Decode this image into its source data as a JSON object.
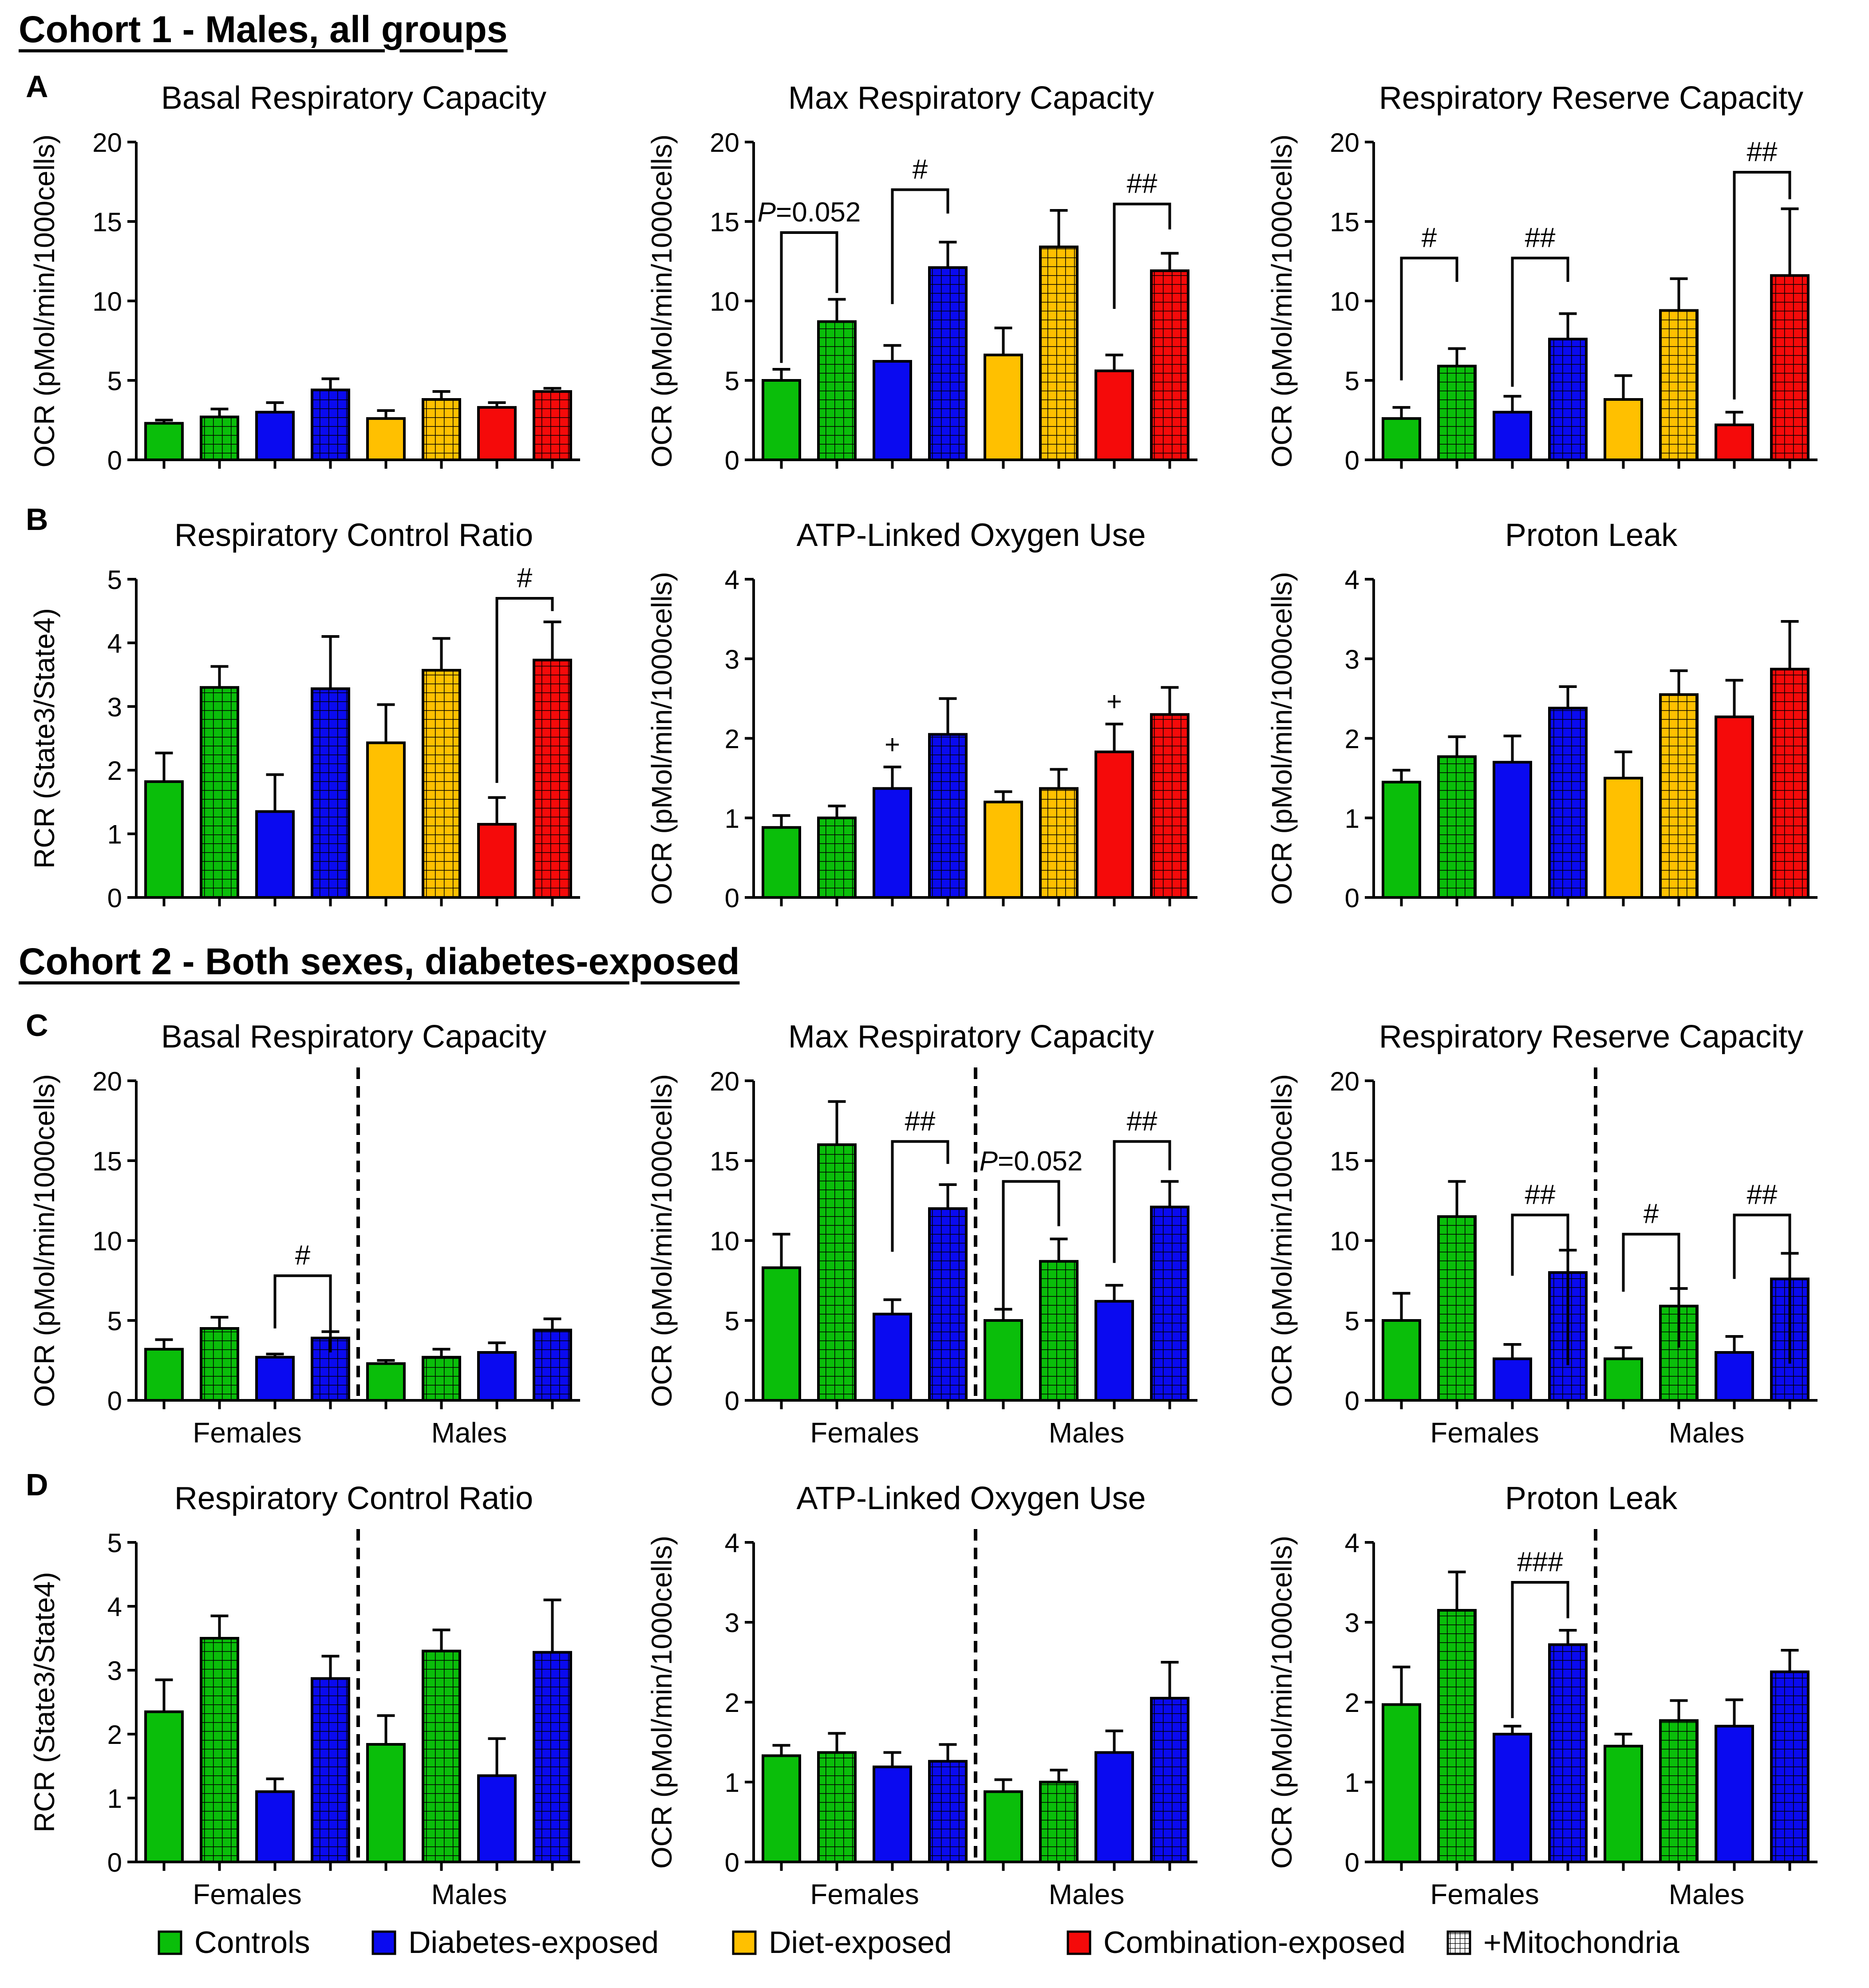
{
  "colors": {
    "controls": "#0ABE0A",
    "diabetes": "#0A0AF0",
    "diet": "#FFC000",
    "combination": "#F50A0A",
    "axis": "#000000"
  },
  "cohorts": [
    {
      "id": "cohort-1",
      "title": "Cohort 1 - Males, all groups"
    },
    {
      "id": "cohort-2",
      "title": "Cohort 2 - Both sexes, diabetes-exposed"
    }
  ],
  "panel_letters": [
    "A",
    "B",
    "C",
    "D"
  ],
  "legend": {
    "items": [
      {
        "label": "Controls",
        "color": "#0ABE0A",
        "icon": "solid-swatch"
      },
      {
        "label": "Diabetes-exposed",
        "color": "#0A0AF0",
        "icon": "solid-swatch"
      },
      {
        "label": "Diet-exposed",
        "color": "#FFC000",
        "icon": "solid-swatch"
      },
      {
        "label": "Combination-exposed",
        "color": "#F50A0A",
        "icon": "solid-swatch"
      },
      {
        "label": "+Mitochondria",
        "color": "#ffffff",
        "icon": "grid-swatch"
      }
    ]
  },
  "chart_data": [
    {
      "id": "a1",
      "type": "bar",
      "title": "Basal Respiratory Capacity",
      "ylabel": "OCR (pMol/min/1000cells)",
      "ylim": [
        0,
        20
      ],
      "yticks": [
        0,
        5,
        10,
        15,
        20
      ],
      "bars": [
        {
          "value": 2.3,
          "err": 0.2,
          "group": "controls",
          "mito": false
        },
        {
          "value": 2.7,
          "err": 0.5,
          "group": "controls",
          "mito": true
        },
        {
          "value": 3.0,
          "err": 0.6,
          "group": "diabetes",
          "mito": false
        },
        {
          "value": 4.4,
          "err": 0.7,
          "group": "diabetes",
          "mito": true
        },
        {
          "value": 2.6,
          "err": 0.5,
          "group": "diet",
          "mito": false
        },
        {
          "value": 3.8,
          "err": 0.5,
          "group": "diet",
          "mito": true
        },
        {
          "value": 3.3,
          "err": 0.3,
          "group": "combination",
          "mito": false
        },
        {
          "value": 4.3,
          "err": 0.2,
          "group": "combination",
          "mito": true
        }
      ],
      "brackets": []
    },
    {
      "id": "a2",
      "type": "bar",
      "title": "Max Respiratory Capacity",
      "ylabel": "OCR (pMol/min/1000cells)",
      "ylim": [
        0,
        20
      ],
      "yticks": [
        0,
        5,
        10,
        15,
        20
      ],
      "bars": [
        {
          "value": 5.0,
          "err": 0.7,
          "group": "controls",
          "mito": false
        },
        {
          "value": 8.7,
          "err": 1.4,
          "group": "controls",
          "mito": true
        },
        {
          "value": 6.2,
          "err": 1.0,
          "group": "diabetes",
          "mito": false
        },
        {
          "value": 12.1,
          "err": 1.6,
          "group": "diabetes",
          "mito": true
        },
        {
          "value": 6.6,
          "err": 1.7,
          "group": "diet",
          "mito": false
        },
        {
          "value": 13.4,
          "err": 2.3,
          "group": "diet",
          "mito": true
        },
        {
          "value": 5.6,
          "err": 1.0,
          "group": "combination",
          "mito": false
        },
        {
          "value": 11.9,
          "err": 1.1,
          "group": "combination",
          "mito": true
        }
      ],
      "brackets": [
        {
          "i": 0,
          "j": 1,
          "y": 14.3,
          "left": 6.1,
          "right": 10.5,
          "text": "=0.052",
          "italic_prefix": "P"
        },
        {
          "i": 2,
          "j": 3,
          "y": 17.0,
          "left": 9.8,
          "right": 15.5,
          "text": "#"
        },
        {
          "i": 6,
          "j": 7,
          "y": 16.1,
          "left": 9.5,
          "right": 14.5,
          "text": "##"
        }
      ]
    },
    {
      "id": "a3",
      "type": "bar",
      "title": "Respiratory Reserve Capacity",
      "ylabel": "OCR (pMol/min/1000cells)",
      "ylim": [
        0,
        20
      ],
      "yticks": [
        0,
        5,
        10,
        15,
        20
      ],
      "bars": [
        {
          "value": 2.6,
          "err": 0.7,
          "group": "controls",
          "mito": false
        },
        {
          "value": 5.9,
          "err": 1.1,
          "group": "controls",
          "mito": true
        },
        {
          "value": 3.0,
          "err": 1.0,
          "group": "diabetes",
          "mito": false
        },
        {
          "value": 7.6,
          "err": 1.6,
          "group": "diabetes",
          "mito": true
        },
        {
          "value": 3.8,
          "err": 1.5,
          "group": "diet",
          "mito": false
        },
        {
          "value": 9.4,
          "err": 2.0,
          "group": "diet",
          "mito": true
        },
        {
          "value": 2.2,
          "err": 0.8,
          "group": "combination",
          "mito": false
        },
        {
          "value": 11.6,
          "err": 4.2,
          "group": "combination",
          "mito": true
        }
      ],
      "brackets": [
        {
          "i": 0,
          "j": 1,
          "y": 12.7,
          "left": 5.0,
          "right": 11.2,
          "text": "#"
        },
        {
          "i": 2,
          "j": 3,
          "y": 12.7,
          "left": 4.6,
          "right": 11.2,
          "text": "##"
        },
        {
          "i": 6,
          "j": 7,
          "y": 18.1,
          "left": 3.8,
          "right": 16.4,
          "text": "##"
        }
      ]
    },
    {
      "id": "b1",
      "type": "bar",
      "title": "Respiratory Control Ratio",
      "ylabel": "RCR (State3/State4)",
      "ylim": [
        0,
        5
      ],
      "yticks": [
        0,
        1,
        2,
        3,
        4,
        5
      ],
      "bars": [
        {
          "value": 1.82,
          "err": 0.45,
          "group": "controls",
          "mito": false
        },
        {
          "value": 3.3,
          "err": 0.33,
          "group": "controls",
          "mito": true
        },
        {
          "value": 1.35,
          "err": 0.58,
          "group": "diabetes",
          "mito": false
        },
        {
          "value": 3.28,
          "err": 0.82,
          "group": "diabetes",
          "mito": true
        },
        {
          "value": 2.43,
          "err": 0.6,
          "group": "diet",
          "mito": false
        },
        {
          "value": 3.57,
          "err": 0.5,
          "group": "diet",
          "mito": true
        },
        {
          "value": 1.15,
          "err": 0.42,
          "group": "combination",
          "mito": false
        },
        {
          "value": 3.73,
          "err": 0.6,
          "group": "combination",
          "mito": true
        }
      ],
      "brackets": [
        {
          "i": 6,
          "j": 7,
          "y": 4.7,
          "left": 1.8,
          "right": 4.5,
          "text": "#"
        }
      ]
    },
    {
      "id": "b2",
      "type": "bar",
      "title": "ATP-Linked Oxygen Use",
      "ylabel": "OCR (pMol/min/1000cells)",
      "ylim": [
        0,
        4
      ],
      "yticks": [
        0,
        1,
        2,
        3,
        4
      ],
      "bars": [
        {
          "value": 0.88,
          "err": 0.15,
          "group": "controls",
          "mito": false
        },
        {
          "value": 1.0,
          "err": 0.15,
          "group": "controls",
          "mito": true
        },
        {
          "value": 1.37,
          "err": 0.27,
          "group": "diabetes",
          "mito": false
        },
        {
          "value": 2.05,
          "err": 0.45,
          "group": "diabetes",
          "mito": true
        },
        {
          "value": 1.2,
          "err": 0.13,
          "group": "diet",
          "mito": false
        },
        {
          "value": 1.37,
          "err": 0.24,
          "group": "diet",
          "mito": true
        },
        {
          "value": 1.83,
          "err": 0.35,
          "group": "combination",
          "mito": false
        },
        {
          "value": 2.3,
          "err": 0.34,
          "group": "combination",
          "mito": true
        }
      ],
      "marks": [
        {
          "i": 2,
          "text": "+"
        },
        {
          "i": 6,
          "text": "+"
        }
      ],
      "brackets": []
    },
    {
      "id": "b3",
      "type": "bar",
      "title": "Proton Leak",
      "ylabel": "OCR (pMol/min/1000cells)",
      "ylim": [
        0,
        4
      ],
      "yticks": [
        0,
        1,
        2,
        3,
        4
      ],
      "bars": [
        {
          "value": 1.45,
          "err": 0.15,
          "group": "controls",
          "mito": false
        },
        {
          "value": 1.77,
          "err": 0.25,
          "group": "controls",
          "mito": true
        },
        {
          "value": 1.7,
          "err": 0.33,
          "group": "diabetes",
          "mito": false
        },
        {
          "value": 2.38,
          "err": 0.27,
          "group": "diabetes",
          "mito": true
        },
        {
          "value": 1.5,
          "err": 0.33,
          "group": "diet",
          "mito": false
        },
        {
          "value": 2.55,
          "err": 0.3,
          "group": "diet",
          "mito": true
        },
        {
          "value": 2.27,
          "err": 0.46,
          "group": "combination",
          "mito": false
        },
        {
          "value": 2.87,
          "err": 0.6,
          "group": "combination",
          "mito": true
        }
      ],
      "brackets": []
    },
    {
      "id": "c1",
      "type": "bar",
      "title": "Basal Respiratory Capacity",
      "ylabel": "OCR (pMol/min/1000cells)",
      "ylim": [
        0,
        20
      ],
      "yticks": [
        0,
        5,
        10,
        15,
        20
      ],
      "divider": true,
      "categories": [
        "Females",
        "Males"
      ],
      "bars": [
        {
          "value": 3.2,
          "err": 0.6,
          "group": "controls",
          "mito": false
        },
        {
          "value": 4.5,
          "err": 0.7,
          "group": "controls",
          "mito": true
        },
        {
          "value": 2.7,
          "err": 0.2,
          "group": "diabetes",
          "mito": false
        },
        {
          "value": 3.9,
          "err": 0.4,
          "group": "diabetes",
          "mito": true
        },
        {
          "value": 2.3,
          "err": 0.2,
          "group": "controls",
          "mito": false
        },
        {
          "value": 2.7,
          "err": 0.5,
          "group": "controls",
          "mito": true
        },
        {
          "value": 3.0,
          "err": 0.6,
          "group": "diabetes",
          "mito": false
        },
        {
          "value": 4.4,
          "err": 0.7,
          "group": "diabetes",
          "mito": true
        }
      ],
      "brackets": [
        {
          "i": 2,
          "j": 3,
          "y": 7.8,
          "left": 4.5,
          "right": 3.0,
          "text": "#"
        }
      ]
    },
    {
      "id": "c2",
      "type": "bar",
      "title": "Max Respiratory Capacity",
      "ylabel": "OCR (pMol/min/1000cells)",
      "ylim": [
        0,
        20
      ],
      "yticks": [
        0,
        5,
        10,
        15,
        20
      ],
      "divider": true,
      "categories": [
        "Females",
        "Males"
      ],
      "bars": [
        {
          "value": 8.3,
          "err": 2.1,
          "group": "controls",
          "mito": false
        },
        {
          "value": 16.0,
          "err": 2.7,
          "group": "controls",
          "mito": true
        },
        {
          "value": 5.4,
          "err": 0.9,
          "group": "diabetes",
          "mito": false
        },
        {
          "value": 12.0,
          "err": 1.5,
          "group": "diabetes",
          "mito": true
        },
        {
          "value": 5.0,
          "err": 0.7,
          "group": "controls",
          "mito": false
        },
        {
          "value": 8.7,
          "err": 1.4,
          "group": "controls",
          "mito": true
        },
        {
          "value": 6.2,
          "err": 1.0,
          "group": "diabetes",
          "mito": false
        },
        {
          "value": 12.1,
          "err": 1.6,
          "group": "diabetes",
          "mito": true
        }
      ],
      "brackets": [
        {
          "i": 2,
          "j": 3,
          "y": 16.2,
          "left": 9.3,
          "right": 14.8,
          "text": "##"
        },
        {
          "i": 4,
          "j": 5,
          "y": 13.7,
          "left": 5.7,
          "right": 10.9,
          "text": "=0.052",
          "italic_prefix": "P"
        },
        {
          "i": 6,
          "j": 7,
          "y": 16.2,
          "left": 8.6,
          "right": 14.4,
          "text": "##"
        }
      ]
    },
    {
      "id": "c3",
      "type": "bar",
      "title": "Respiratory Reserve Capacity",
      "ylabel": "OCR (pMol/min/1000cells)",
      "ylim": [
        0,
        20
      ],
      "yticks": [
        0,
        5,
        10,
        15,
        20
      ],
      "divider": true,
      "categories": [
        "Females",
        "Males"
      ],
      "bars": [
        {
          "value": 5.0,
          "err": 1.7,
          "group": "controls",
          "mito": false
        },
        {
          "value": 11.5,
          "err": 2.2,
          "group": "controls",
          "mito": true
        },
        {
          "value": 2.6,
          "err": 0.9,
          "group": "diabetes",
          "mito": false
        },
        {
          "value": 8.0,
          "err": 1.4,
          "group": "diabetes",
          "mito": true
        },
        {
          "value": 2.6,
          "err": 0.7,
          "group": "controls",
          "mito": false
        },
        {
          "value": 5.9,
          "err": 1.1,
          "group": "controls",
          "mito": true
        },
        {
          "value": 3.0,
          "err": 1.0,
          "group": "diabetes",
          "mito": false
        },
        {
          "value": 7.6,
          "err": 1.6,
          "group": "diabetes",
          "mito": true
        }
      ],
      "brackets": [
        {
          "i": 2,
          "j": 3,
          "y": 11.6,
          "left": 7.8,
          "right": 2.2,
          "text": "##"
        },
        {
          "i": 4,
          "j": 5,
          "y": 10.4,
          "left": 6.8,
          "right": 3.3,
          "text": "#"
        },
        {
          "i": 6,
          "j": 7,
          "y": 11.6,
          "left": 7.6,
          "right": 2.3,
          "text": "##"
        }
      ]
    },
    {
      "id": "d1",
      "type": "bar",
      "title": "Respiratory Control Ratio",
      "ylabel": "RCR (State3/State4)",
      "ylim": [
        0,
        5
      ],
      "yticks": [
        0,
        1,
        2,
        3,
        4,
        5
      ],
      "divider": true,
      "categories": [
        "Females",
        "Males"
      ],
      "bars": [
        {
          "value": 2.35,
          "err": 0.5,
          "group": "controls",
          "mito": false
        },
        {
          "value": 3.5,
          "err": 0.35,
          "group": "controls",
          "mito": true
        },
        {
          "value": 1.1,
          "err": 0.2,
          "group": "diabetes",
          "mito": false
        },
        {
          "value": 2.87,
          "err": 0.35,
          "group": "diabetes",
          "mito": true
        },
        {
          "value": 1.84,
          "err": 0.45,
          "group": "controls",
          "mito": false
        },
        {
          "value": 3.3,
          "err": 0.33,
          "group": "controls",
          "mito": true
        },
        {
          "value": 1.35,
          "err": 0.58,
          "group": "diabetes",
          "mito": false
        },
        {
          "value": 3.28,
          "err": 0.82,
          "group": "diabetes",
          "mito": true
        }
      ],
      "brackets": []
    },
    {
      "id": "d2",
      "type": "bar",
      "title": "ATP-Linked Oxygen Use",
      "ylabel": "OCR (pMol/min/1000cells)",
      "ylim": [
        0,
        4
      ],
      "yticks": [
        0,
        1,
        2,
        3,
        4
      ],
      "divider": true,
      "categories": [
        "Females",
        "Males"
      ],
      "bars": [
        {
          "value": 1.33,
          "err": 0.13,
          "group": "controls",
          "mito": false
        },
        {
          "value": 1.37,
          "err": 0.24,
          "group": "controls",
          "mito": true
        },
        {
          "value": 1.19,
          "err": 0.18,
          "group": "diabetes",
          "mito": false
        },
        {
          "value": 1.26,
          "err": 0.21,
          "group": "diabetes",
          "mito": true
        },
        {
          "value": 0.88,
          "err": 0.15,
          "group": "controls",
          "mito": false
        },
        {
          "value": 1.0,
          "err": 0.15,
          "group": "controls",
          "mito": true
        },
        {
          "value": 1.37,
          "err": 0.27,
          "group": "diabetes",
          "mito": false
        },
        {
          "value": 2.05,
          "err": 0.45,
          "group": "diabetes",
          "mito": true
        }
      ],
      "brackets": []
    },
    {
      "id": "d3",
      "type": "bar",
      "title": "Proton Leak",
      "ylabel": "OCR (pMol/min/1000cells)",
      "ylim": [
        0,
        4
      ],
      "yticks": [
        0,
        1,
        2,
        3,
        4
      ],
      "divider": true,
      "categories": [
        "Females",
        "Males"
      ],
      "bars": [
        {
          "value": 1.97,
          "err": 0.47,
          "group": "controls",
          "mito": false
        },
        {
          "value": 3.15,
          "err": 0.48,
          "group": "controls",
          "mito": true
        },
        {
          "value": 1.6,
          "err": 0.1,
          "group": "diabetes",
          "mito": false
        },
        {
          "value": 2.72,
          "err": 0.18,
          "group": "diabetes",
          "mito": true
        },
        {
          "value": 1.45,
          "err": 0.15,
          "group": "controls",
          "mito": false
        },
        {
          "value": 1.77,
          "err": 0.25,
          "group": "controls",
          "mito": true
        },
        {
          "value": 1.7,
          "err": 0.33,
          "group": "diabetes",
          "mito": false
        },
        {
          "value": 2.38,
          "err": 0.27,
          "group": "diabetes",
          "mito": true
        }
      ],
      "brackets": [
        {
          "i": 2,
          "j": 3,
          "y": 3.5,
          "left": 1.8,
          "right": 3.05,
          "text": "###"
        }
      ]
    }
  ]
}
